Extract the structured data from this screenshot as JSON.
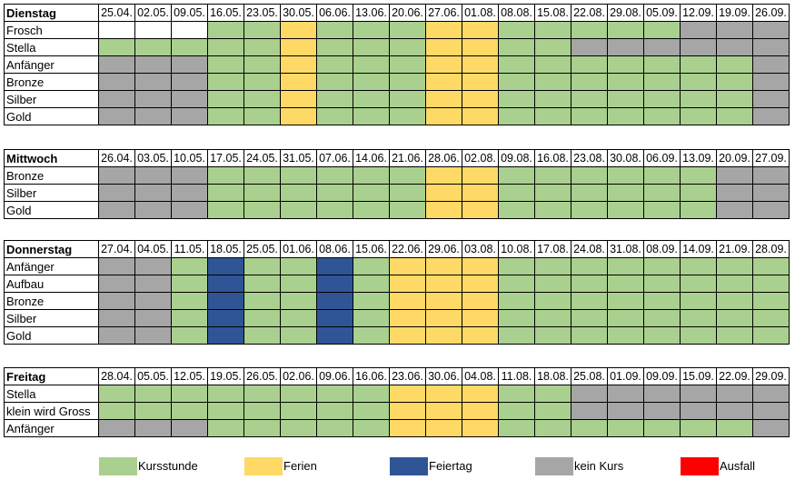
{
  "colors": {
    "K": "#a9d08e",
    "F": "#ffd966",
    "H": "#2f5597",
    "N": "#a6a6a6",
    "A": "#ff0000"
  },
  "days": [
    {
      "name": "Dienstag",
      "dates": [
        "25.04.",
        "02.05.",
        "09.05.",
        "16.05.",
        "23.05.",
        "30.05.",
        "06.06.",
        "13.06.",
        "20.06.",
        "27.06.",
        "01.08.",
        "08.08.",
        "15.08.",
        "22.08.",
        "29.08.",
        "05.09.",
        "12.09.",
        "19.09.",
        "26.09."
      ],
      "rows": [
        {
          "label": "Frosch",
          "cells": "___KKFKKKFFKKKKKNNN"
        },
        {
          "label": "Stella",
          "cells": "KKKKKFKKKFFKKNNNNNN"
        },
        {
          "label": "Anfänger",
          "cells": "NNNKKFKKKFFKKKKKKKN"
        },
        {
          "label": "Bronze",
          "cells": "NNNKKFKKKFFKKKKKKKN"
        },
        {
          "label": "Silber",
          "cells": "NNNKKFKKKFFKKKKKKKN"
        },
        {
          "label": "Gold",
          "cells": "NNNKKFKKKFFKKKKKKKN"
        }
      ]
    },
    {
      "name": "Mittwoch",
      "dates": [
        "26.04.",
        "03.05.",
        "10.05.",
        "17.05.",
        "24.05.",
        "31.05.",
        "07.06.",
        "14.06.",
        "21.06.",
        "28.06.",
        "02.08.",
        "09.08.",
        "16.08.",
        "23.08.",
        "30.08.",
        "06.09.",
        "13.09.",
        "20.09.",
        "27.09."
      ],
      "rows": [
        {
          "label": "Bronze",
          "cells": "NNNKKKKKKFFKKKKKKNN"
        },
        {
          "label": "Silber",
          "cells": "NNNKKKKKKFFKKKKKKNN"
        },
        {
          "label": "Gold",
          "cells": "NNNKKKKKKFFKKKKKKNN"
        }
      ]
    },
    {
      "name": "Donnerstag",
      "dates": [
        "27.04.",
        "04.05.",
        "11.05.",
        "18.05.",
        "25.05.",
        "01.06.",
        "08.06.",
        "15.06.",
        "22.06.",
        "29.06.",
        "03.08.",
        "10.08.",
        "17.08.",
        "24.08.",
        "31.08.",
        "08.09.",
        "14.09.",
        "21.09.",
        "28.09."
      ],
      "rows": [
        {
          "label": "Anfänger",
          "cells": "NNKHKKHKFFFKKKKKKKK"
        },
        {
          "label": "Aufbau",
          "cells": "NNKHKKHKFFFKKKKKKKK"
        },
        {
          "label": "Bronze",
          "cells": "NNKHKKHKFFFKKKKKKKK"
        },
        {
          "label": "Silber",
          "cells": "NNKHKKHKFFFKKKKKKKK"
        },
        {
          "label": "Gold",
          "cells": "NNKHKKHKFFFKKKKKKKK"
        }
      ]
    },
    {
      "name": "Freitag",
      "dates": [
        "28.04.",
        "05.05.",
        "12.05.",
        "19.05.",
        "26.05.",
        "02.06.",
        "09.06.",
        "16.06.",
        "23.06.",
        "30.06.",
        "04.08.",
        "11.08.",
        "18.08.",
        "25.08.",
        "01.09.",
        "09.09.",
        "15.09.",
        "22.09.",
        "29.09."
      ],
      "rows": [
        {
          "label": "Stella",
          "cells": "KKKKKKKKFFFKKNNNNNN"
        },
        {
          "label": "klein wird Gross",
          "cells": "KKKKKKKKFFFKKNNNNNN"
        },
        {
          "label": "Anfänger",
          "cells": "NNNKKKKKFFFKKKKKKKN"
        }
      ]
    }
  ],
  "legend": [
    {
      "key": "K",
      "label": "Kursstunde"
    },
    {
      "key": "F",
      "label": "Ferien"
    },
    {
      "key": "H",
      "label": "Feiertag"
    },
    {
      "key": "N",
      "label": "kein Kurs"
    },
    {
      "key": "A",
      "label": "Ausfall"
    }
  ]
}
